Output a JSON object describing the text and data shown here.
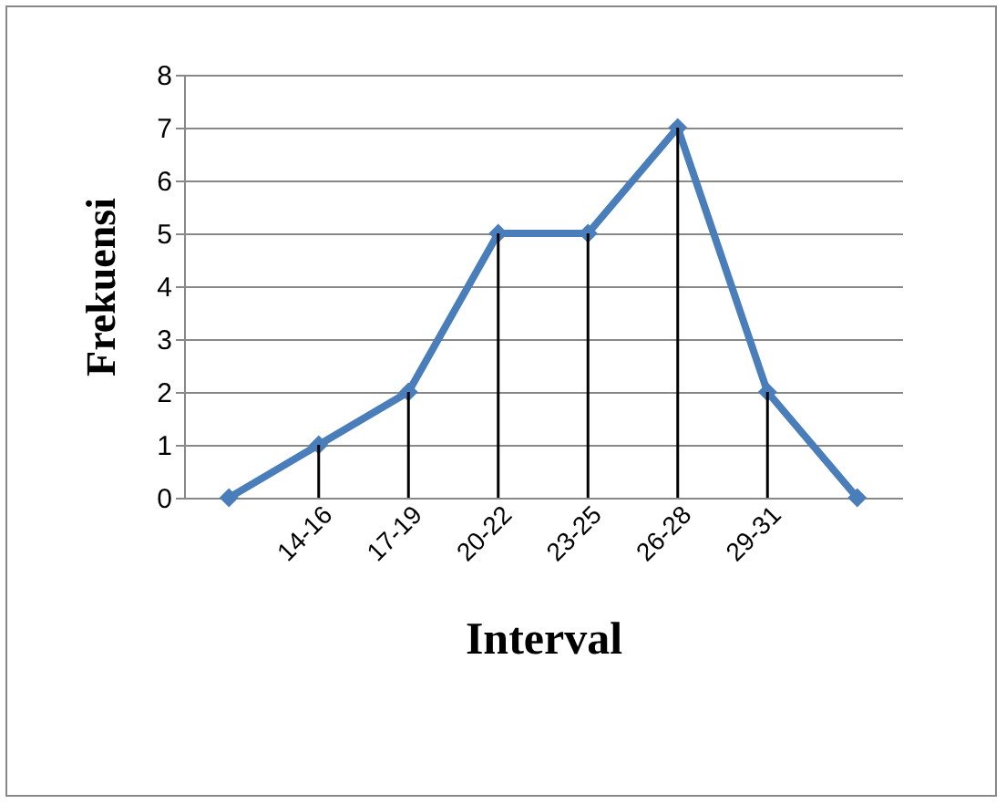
{
  "chart_data": {
    "type": "line",
    "xlabel": "Interval",
    "ylabel": "Frekuensi",
    "categories": [
      null,
      "14-16",
      "17-19",
      "20-22",
      "23-25",
      "26-28",
      "29-31",
      null
    ],
    "series": [
      {
        "type": "bar",
        "color": "#000000",
        "values": [
          0,
          1,
          2,
          5,
          5,
          7,
          2,
          0
        ]
      },
      {
        "color": "#4a7ebb",
        "values": [
          0,
          1,
          2,
          5,
          5,
          7,
          2,
          0
        ]
      }
    ],
    "ylim": [
      0,
      8
    ],
    "yticks": [
      0,
      1,
      2,
      3,
      4,
      5,
      6,
      7,
      8
    ],
    "grid": "y",
    "marker": "diamond",
    "line_style": "solid",
    "legend": false
  }
}
